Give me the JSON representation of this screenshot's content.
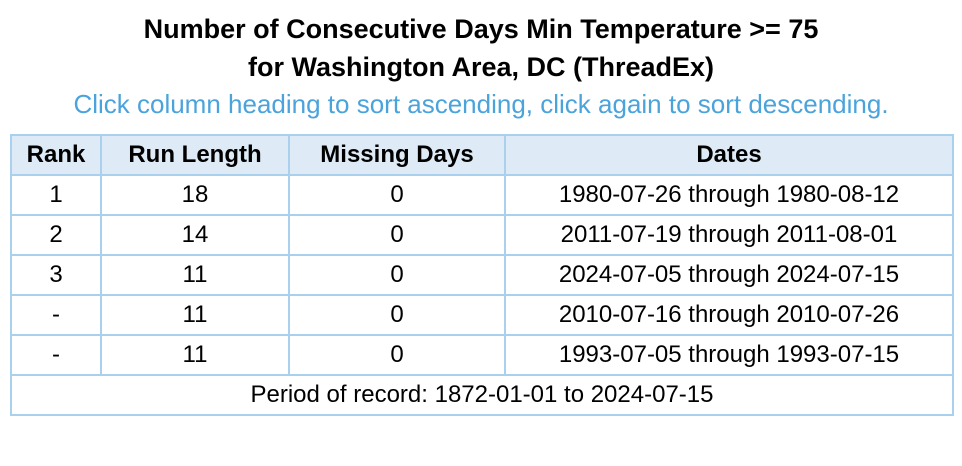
{
  "header": {
    "title": [
      "Number of Consecutive Days Min Temperature >= 75",
      "for Washington Area, DC (ThreadEx)"
    ],
    "instruction": "Click column heading to sort ascending, click again to sort descending."
  },
  "table": {
    "columns": [
      "Rank",
      "Run Length",
      "Missing Days",
      "Dates"
    ],
    "rows": [
      [
        1,
        18,
        0,
        "1980-07-26 through 1980-08-12"
      ],
      [
        2,
        14,
        0,
        "2011-07-19 through 2011-08-01"
      ],
      [
        3,
        11,
        0,
        "2024-07-05 through 2024-07-15"
      ],
      [
        "-",
        11,
        0,
        "2010-07-16 through 2010-07-26"
      ],
      [
        "-",
        11,
        0,
        "1993-07-05 through 1993-07-15"
      ]
    ],
    "footer": "Period of record: 1872-01-01 to 2024-07-15"
  }
}
